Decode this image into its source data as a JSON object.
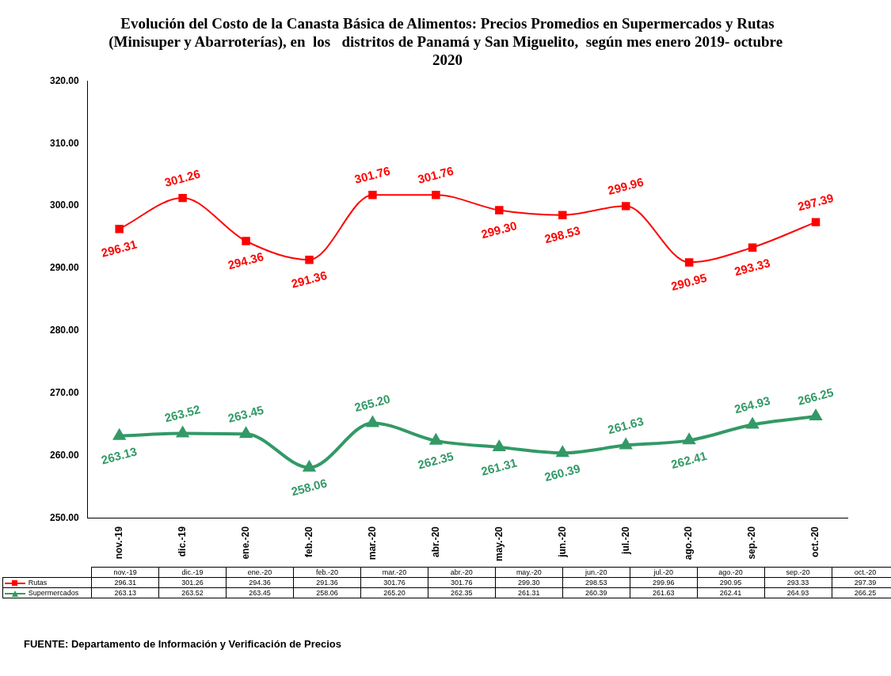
{
  "chart_data": {
    "type": "line",
    "title": "Evolución del Costo de la Canasta Básica de Alimentos: Precios Promedios en Supermercados y Rutas (Minisuper y Abarroterías), en  los   distritos de Panamá y San Miguelito,  según mes enero 2019- octubre  2020",
    "categories": [
      "nov.-19",
      "dic.-19",
      "ene.-20",
      "feb.-20",
      "mar.-20",
      "abr.-20",
      "may.-20",
      "jun.-20",
      "jul.-20",
      "ago.-20",
      "sep.-20",
      "oct.-20"
    ],
    "series": [
      {
        "name": "Rutas",
        "color": "#ff0000",
        "marker": "square",
        "values": [
          296.31,
          301.26,
          294.36,
          291.36,
          301.76,
          301.76,
          299.3,
          298.53,
          299.96,
          290.95,
          293.33,
          297.39
        ],
        "value_labels": [
          "296.31",
          "301.26",
          "294.36",
          "291.36",
          "301.76",
          "301.76",
          "299.30",
          "298.53",
          "299.96",
          "290.95",
          "293.33",
          "297.39"
        ]
      },
      {
        "name": "Supermercados",
        "color": "#339966",
        "marker": "triangle",
        "values": [
          263.13,
          263.52,
          263.45,
          258.06,
          265.2,
          262.35,
          261.31,
          260.39,
          261.63,
          262.41,
          264.93,
          266.25
        ],
        "value_labels": [
          "263.13",
          "263.52",
          "263.45",
          "258.06",
          "265.20",
          "262.35",
          "261.31",
          "260.39",
          "261.63",
          "262.41",
          "264.93",
          "266.25"
        ]
      }
    ],
    "ylim": [
      250,
      320
    ],
    "yticks": [
      {
        "value": 250,
        "label": "250.00"
      },
      {
        "value": 260,
        "label": "260.00"
      },
      {
        "value": 270,
        "label": "270.00"
      },
      {
        "value": 280,
        "label": "280.00"
      },
      {
        "value": 290,
        "label": "290.00"
      },
      {
        "value": 300,
        "label": "300.00"
      },
      {
        "value": 310,
        "label": "310.00"
      },
      {
        "value": 320,
        "label": "320.00"
      }
    ],
    "grid": false,
    "legend": "bottom",
    "annotations": [
      "FUENTE: Departamento de Información y Verificación de Precios"
    ]
  }
}
